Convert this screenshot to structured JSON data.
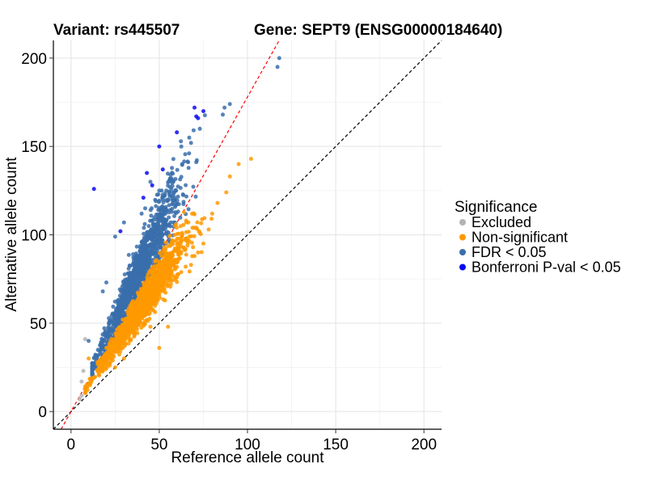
{
  "chart_data": {
    "type": "scatter",
    "title_left": "Variant: rs445507",
    "title_right": "Gene: SEPT9 (ENSG00000184640)",
    "xlabel": "Reference allele count",
    "ylabel": "Alternative allele count",
    "xlim": [
      -10,
      210
    ],
    "ylim": [
      -10,
      210
    ],
    "xticks": [
      0,
      50,
      100,
      150,
      200
    ],
    "yticks": [
      0,
      50,
      100,
      150,
      200
    ],
    "grid": true,
    "reference_lines": [
      {
        "name": "identity",
        "slope": 1,
        "intercept": 0,
        "style": "dashed",
        "color": "#000000"
      },
      {
        "name": "fit",
        "slope": 1.78,
        "intercept": 0,
        "style": "dashed",
        "color": "#ff0000"
      }
    ],
    "legend": {
      "title": "Significance",
      "position": "right",
      "entries": [
        {
          "label": "Excluded",
          "color": "#b3b3b3"
        },
        {
          "label": "Non-significant",
          "color": "#ff9900"
        },
        {
          "label": "FDR < 0.05",
          "color": "#3a6fab"
        },
        {
          "label": "Bonferroni P-val < 0.05",
          "color": "#0a0af5"
        }
      ]
    },
    "series": [
      {
        "name": "Excluded",
        "color": "#b3b3b3",
        "points": [
          [
            8,
            41
          ],
          [
            7,
            23
          ],
          [
            6,
            17
          ],
          [
            8,
            13
          ],
          [
            5,
            7
          ],
          [
            6,
            9
          ]
        ]
      },
      {
        "name": "Non-significant",
        "color": "#ff9900",
        "n_cloud": 1400,
        "cloud": {
          "x_mean": 40,
          "x_sd": 12,
          "x_min": 8,
          "x_max": 95,
          "ratio_mean": 1.5,
          "ratio_sd": 0.13,
          "ratio_min": 1.18,
          "ratio_max": 1.78
        },
        "points": [
          [
            102,
            143
          ],
          [
            95,
            140
          ],
          [
            90,
            133
          ],
          [
            88,
            124
          ],
          [
            83,
            118
          ],
          [
            80,
            112
          ],
          [
            78,
            103
          ],
          [
            75,
            95
          ],
          [
            72,
            90
          ],
          [
            70,
            88
          ],
          [
            68,
            83
          ],
          [
            65,
            82
          ],
          [
            60,
            76
          ],
          [
            55,
            48
          ],
          [
            50,
            36
          ],
          [
            45,
            48
          ],
          [
            30,
            30
          ],
          [
            25,
            25
          ],
          [
            20,
            36
          ],
          [
            10,
            30
          ],
          [
            15,
            28
          ]
        ]
      },
      {
        "name": "FDR < 0.05",
        "color": "#3a6fab",
        "n_cloud": 1200,
        "cloud": {
          "x_mean": 38,
          "x_sd": 12,
          "x_min": 12,
          "x_max": 90,
          "ratio_mean": 2.05,
          "ratio_sd": 0.2,
          "ratio_min": 1.72,
          "ratio_max": 2.75
        },
        "points": [
          [
            118,
            200
          ],
          [
            117,
            195
          ],
          [
            90,
            174
          ],
          [
            87,
            172
          ],
          [
            86,
            168
          ],
          [
            73,
            160
          ],
          [
            67,
            155
          ],
          [
            68,
            152
          ],
          [
            63,
            140
          ],
          [
            58,
            130
          ],
          [
            55,
            120
          ],
          [
            50,
            125
          ],
          [
            45,
            130
          ],
          [
            42,
            115
          ],
          [
            40,
            112
          ],
          [
            30,
            107
          ],
          [
            25,
            99
          ],
          [
            20,
            73
          ],
          [
            18,
            68
          ],
          [
            10,
            40
          ]
        ]
      },
      {
        "name": "Bonferroni P-val < 0.05",
        "color": "#0a0af5",
        "points": [
          [
            13,
            126
          ],
          [
            28,
            102
          ],
          [
            46,
            128
          ],
          [
            41,
            121
          ],
          [
            43,
            135
          ],
          [
            52,
            137
          ],
          [
            50,
            150
          ],
          [
            60,
            158
          ],
          [
            70,
            172
          ],
          [
            72,
            166
          ],
          [
            71,
            167
          ],
          [
            75,
            170
          ]
        ]
      }
    ]
  }
}
